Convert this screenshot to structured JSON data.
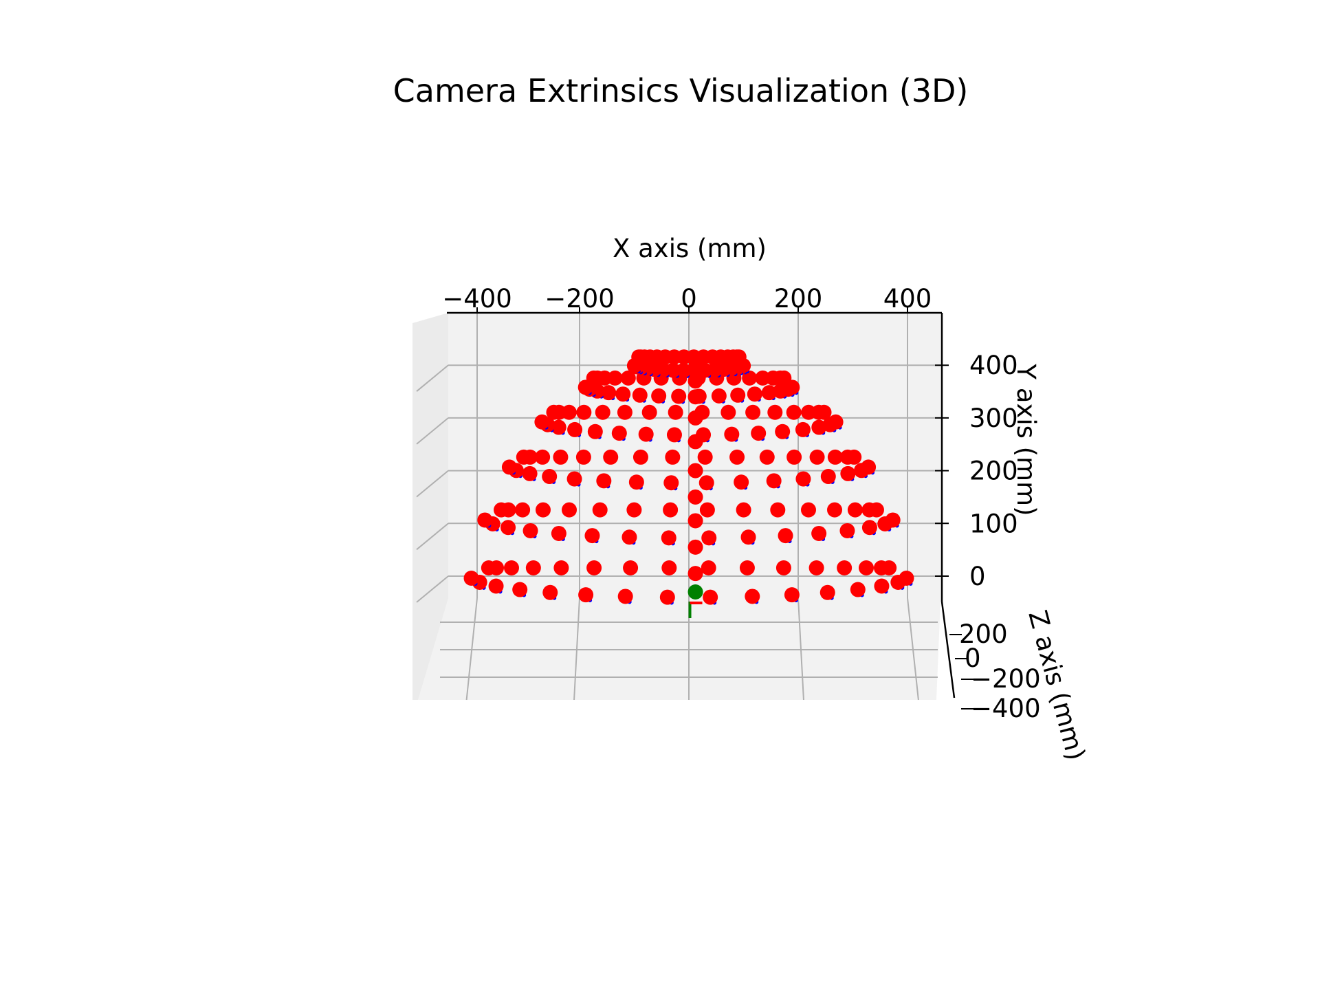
{
  "chart_data": {
    "type": "scatter",
    "projection": "3d",
    "title": "Camera Extrinsics Visualization (3D)",
    "xlabel": "X axis (mm)",
    "ylabel": "Y axis (mm)",
    "zlabel": "Z axis (mm)",
    "xlim": [
      -440,
      460
    ],
    "ylim": [
      -50,
      450
    ],
    "x_ticks": [
      "−400",
      "−200",
      "0",
      "200",
      "400"
    ],
    "y_ticks": [
      "0",
      "100",
      "200",
      "300",
      "400"
    ],
    "z_ticks": [
      "200",
      "0",
      "−200",
      "−400"
    ],
    "grid": true,
    "colors": {
      "camera": "#ff0000",
      "orientation_dots": "#0000ff",
      "origin": "#008000",
      "pane": "#f2f2f2",
      "grid": "#b0b0b0"
    },
    "series": [
      {
        "marker": "camera",
        "rings": [
          {
            "y": 0,
            "radius": 400,
            "count": 16
          },
          {
            "y": 110,
            "radius": 375,
            "count": 16
          },
          {
            "y": 210,
            "radius": 330,
            "count": 16
          },
          {
            "y": 295,
            "radius": 270,
            "count": 16
          },
          {
            "y": 360,
            "radius": 190,
            "count": 16
          },
          {
            "y": 400,
            "radius": 100,
            "count": 16
          }
        ],
        "columns": [
          {
            "x": 12,
            "y": [
              5,
              55,
              105,
              150,
              200,
              255,
              300,
              340,
              370,
              395,
              410
            ]
          }
        ]
      },
      {
        "marker": "origin",
        "x": [
          12
        ],
        "y": [
          -30
        ]
      }
    ]
  }
}
